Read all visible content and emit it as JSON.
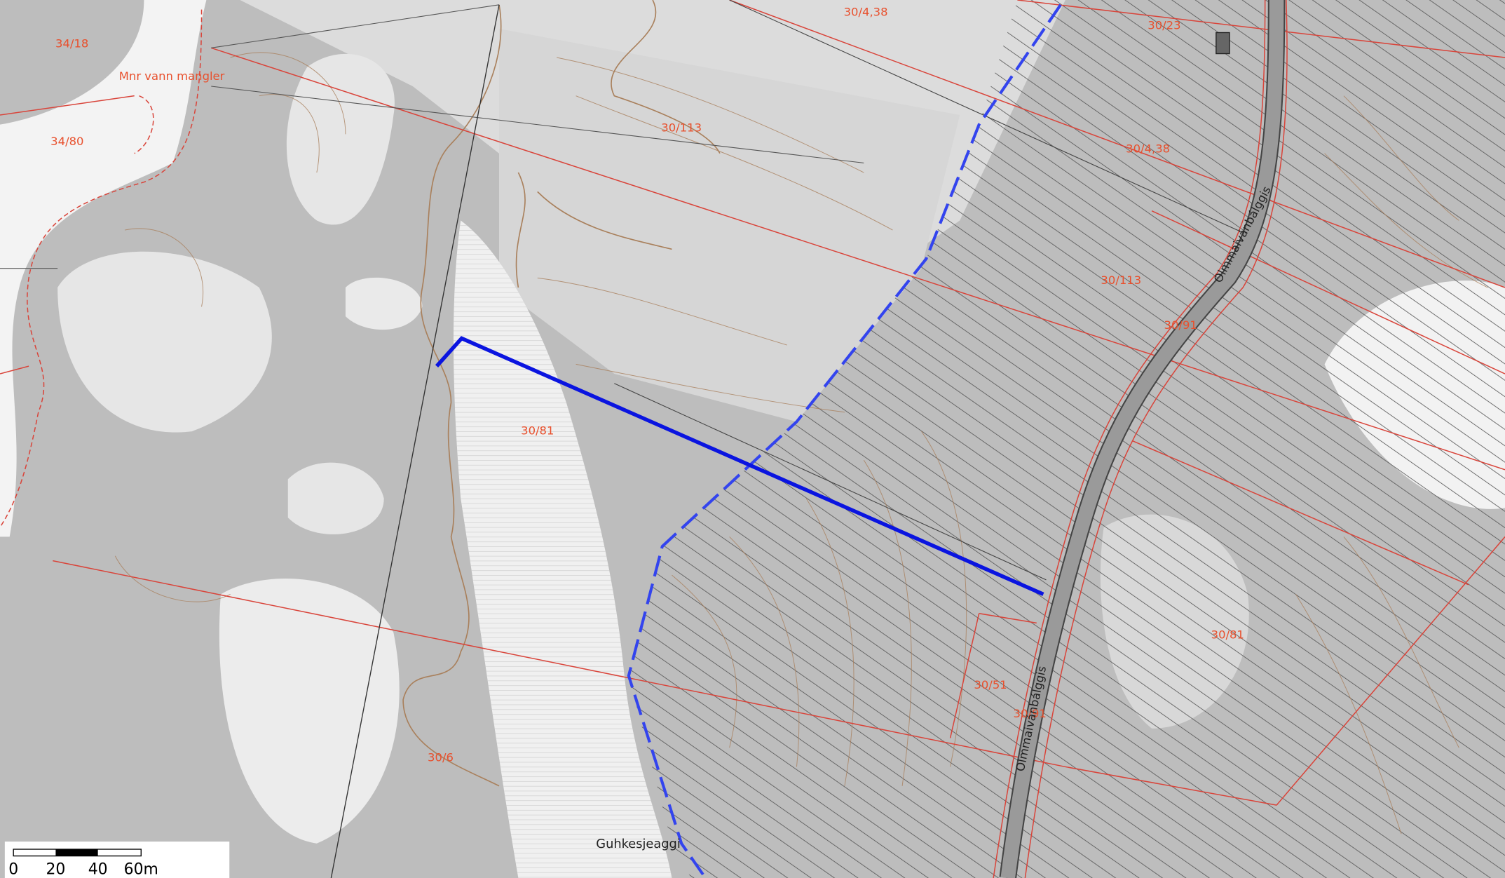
{
  "map": {
    "labels": [
      "30/4,38",
      "30/23",
      "34/18",
      "Mnr vann mangler",
      "34/80",
      "30/113",
      "30/4,38",
      "30/113",
      "30/91",
      "30/81",
      "30/81",
      "30/51",
      "30/91",
      "30/6"
    ],
    "place_name": "Guhkesjeaggi",
    "road_names": [
      "Olmmaivánbálggis",
      "Olmmaivánbálggis"
    ],
    "scale_bar": {
      "ticks": [
        "0",
        "20",
        "40",
        "60m"
      ]
    }
  }
}
